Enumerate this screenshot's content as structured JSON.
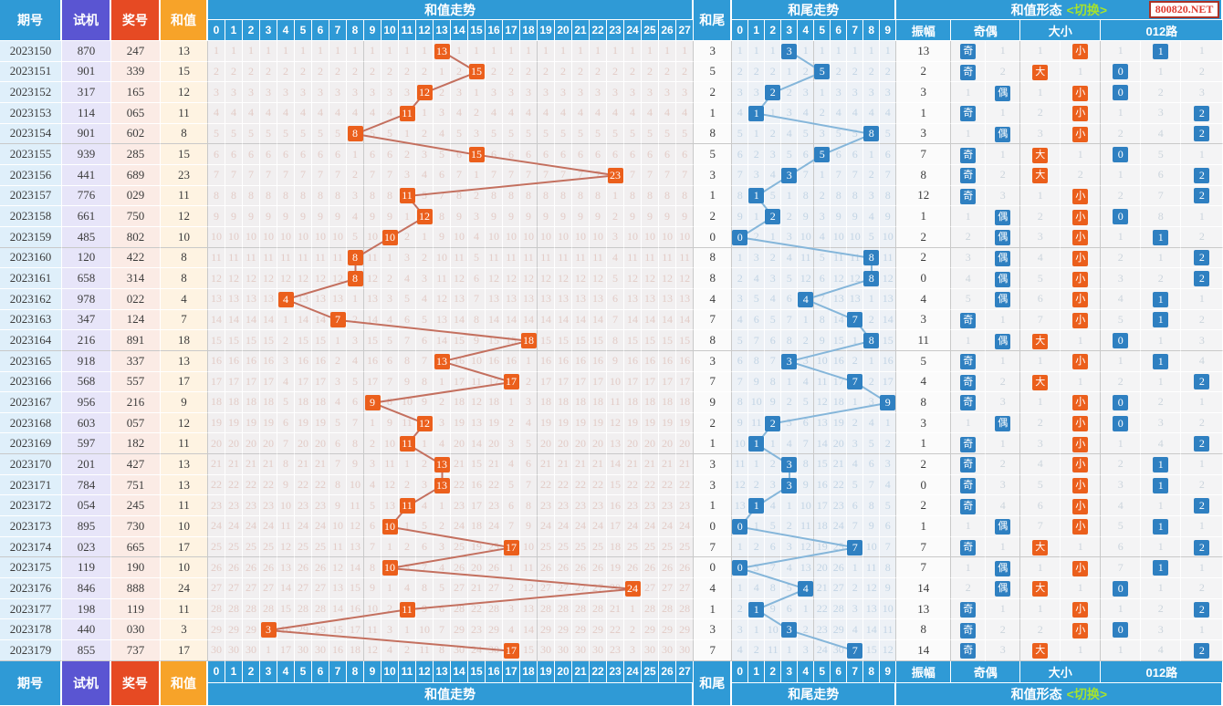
{
  "site": {
    "watermark": "800820.NET"
  },
  "labels": {
    "period": "期号",
    "test": "试机",
    "prize": "奖号",
    "sum": "和值",
    "sum_trend": "和值走势",
    "tail": "和尾",
    "tail_trend": "和尾走势",
    "pattern": "和值形态",
    "switch_label": "<切换>",
    "amplitude": "振幅",
    "parity": "奇偶",
    "size": "大小",
    "road": "012路",
    "odd": "奇",
    "even": "偶",
    "big": "大",
    "small": "小",
    "sum_cols": [
      0,
      1,
      2,
      3,
      4,
      5,
      6,
      7,
      8,
      9,
      10,
      11,
      12,
      13,
      14,
      15,
      16,
      17,
      18,
      19,
      20,
      21,
      22,
      23,
      24,
      25,
      26,
      27
    ],
    "tail_cols": [
      0,
      1,
      2,
      3,
      4,
      5,
      6,
      7,
      8,
      9
    ],
    "road_cols": [
      0,
      1,
      2
    ]
  },
  "colors": {
    "header_blue": "#2F9AD6",
    "header_purple": "#5A55D2",
    "header_red": "#E64A23",
    "header_orange": "#F7A329",
    "sum_point": "#EB5F1C",
    "sum_line": "#C4705F",
    "sum_miss_text": "#E2CBC6",
    "tail_point": "#2F80C1",
    "tail_line": "#85B6DA",
    "tail_miss_text": "#C2D4E4",
    "form_miss_text": "#CBD4DC",
    "switch_green": "#A6E22E",
    "watermark_red": "#E03A2F",
    "grid_major": "#C9C9C9"
  },
  "rows": [
    {
      "period": "2023150",
      "test": "870",
      "prize": "247",
      "sum": 13,
      "tail": 3,
      "amp": 13,
      "parity": "奇",
      "size": "小",
      "road": 1
    },
    {
      "period": "2023151",
      "test": "901",
      "prize": "339",
      "sum": 15,
      "tail": 5,
      "amp": 2,
      "parity": "奇",
      "size": "大",
      "road": 0
    },
    {
      "period": "2023152",
      "test": "317",
      "prize": "165",
      "sum": 12,
      "tail": 2,
      "amp": 3,
      "parity": "偶",
      "size": "小",
      "road": 0
    },
    {
      "period": "2023153",
      "test": "114",
      "prize": "065",
      "sum": 11,
      "tail": 1,
      "amp": 1,
      "parity": "奇",
      "size": "小",
      "road": 2
    },
    {
      "period": "2023154",
      "test": "901",
      "prize": "602",
      "sum": 8,
      "tail": 8,
      "amp": 3,
      "parity": "偶",
      "size": "小",
      "road": 2
    },
    {
      "period": "2023155",
      "test": "939",
      "prize": "285",
      "sum": 15,
      "tail": 5,
      "amp": 7,
      "parity": "奇",
      "size": "大",
      "road": 0
    },
    {
      "period": "2023156",
      "test": "441",
      "prize": "689",
      "sum": 23,
      "tail": 3,
      "amp": 8,
      "parity": "奇",
      "size": "大",
      "road": 2
    },
    {
      "period": "2023157",
      "test": "776",
      "prize": "029",
      "sum": 11,
      "tail": 1,
      "amp": 12,
      "parity": "奇",
      "size": "小",
      "road": 2
    },
    {
      "period": "2023158",
      "test": "661",
      "prize": "750",
      "sum": 12,
      "tail": 2,
      "amp": 1,
      "parity": "偶",
      "size": "小",
      "road": 0
    },
    {
      "period": "2023159",
      "test": "485",
      "prize": "802",
      "sum": 10,
      "tail": 0,
      "amp": 2,
      "parity": "偶",
      "size": "小",
      "road": 1
    },
    {
      "period": "2023160",
      "test": "120",
      "prize": "422",
      "sum": 8,
      "tail": 8,
      "amp": 2,
      "parity": "偶",
      "size": "小",
      "road": 2
    },
    {
      "period": "2023161",
      "test": "658",
      "prize": "314",
      "sum": 8,
      "tail": 8,
      "amp": 0,
      "parity": "偶",
      "size": "小",
      "road": 2
    },
    {
      "period": "2023162",
      "test": "978",
      "prize": "022",
      "sum": 4,
      "tail": 4,
      "amp": 4,
      "parity": "偶",
      "size": "小",
      "road": 1
    },
    {
      "period": "2023163",
      "test": "347",
      "prize": "124",
      "sum": 7,
      "tail": 7,
      "amp": 3,
      "parity": "奇",
      "size": "小",
      "road": 1
    },
    {
      "period": "2023164",
      "test": "216",
      "prize": "891",
      "sum": 18,
      "tail": 8,
      "amp": 11,
      "parity": "偶",
      "size": "大",
      "road": 0
    },
    {
      "period": "2023165",
      "test": "918",
      "prize": "337",
      "sum": 13,
      "tail": 3,
      "amp": 5,
      "parity": "奇",
      "size": "小",
      "road": 1
    },
    {
      "period": "2023166",
      "test": "568",
      "prize": "557",
      "sum": 17,
      "tail": 7,
      "amp": 4,
      "parity": "奇",
      "size": "大",
      "road": 2
    },
    {
      "period": "2023167",
      "test": "956",
      "prize": "216",
      "sum": 9,
      "tail": 9,
      "amp": 8,
      "parity": "奇",
      "size": "小",
      "road": 0
    },
    {
      "period": "2023168",
      "test": "603",
      "prize": "057",
      "sum": 12,
      "tail": 2,
      "amp": 3,
      "parity": "偶",
      "size": "小",
      "road": 0
    },
    {
      "period": "2023169",
      "test": "597",
      "prize": "182",
      "sum": 11,
      "tail": 1,
      "amp": 1,
      "parity": "奇",
      "size": "小",
      "road": 2
    },
    {
      "period": "2023170",
      "test": "201",
      "prize": "427",
      "sum": 13,
      "tail": 3,
      "amp": 2,
      "parity": "奇",
      "size": "小",
      "road": 1
    },
    {
      "period": "2023171",
      "test": "784",
      "prize": "751",
      "sum": 13,
      "tail": 3,
      "amp": 0,
      "parity": "奇",
      "size": "小",
      "road": 1
    },
    {
      "period": "2023172",
      "test": "054",
      "prize": "245",
      "sum": 11,
      "tail": 1,
      "amp": 2,
      "parity": "奇",
      "size": "小",
      "road": 2
    },
    {
      "period": "2023173",
      "test": "895",
      "prize": "730",
      "sum": 10,
      "tail": 0,
      "amp": 1,
      "parity": "偶",
      "size": "小",
      "road": 1
    },
    {
      "period": "2023174",
      "test": "023",
      "prize": "665",
      "sum": 17,
      "tail": 7,
      "amp": 7,
      "parity": "奇",
      "size": "大",
      "road": 2
    },
    {
      "period": "2023175",
      "test": "119",
      "prize": "190",
      "sum": 10,
      "tail": 0,
      "amp": 7,
      "parity": "偶",
      "size": "小",
      "road": 1
    },
    {
      "period": "2023176",
      "test": "846",
      "prize": "888",
      "sum": 24,
      "tail": 4,
      "amp": 14,
      "parity": "偶",
      "size": "大",
      "road": 0
    },
    {
      "period": "2023177",
      "test": "198",
      "prize": "119",
      "sum": 11,
      "tail": 1,
      "amp": 13,
      "parity": "奇",
      "size": "小",
      "road": 2
    },
    {
      "period": "2023178",
      "test": "440",
      "prize": "030",
      "sum": 3,
      "tail": 3,
      "amp": 8,
      "parity": "奇",
      "size": "小",
      "road": 0
    },
    {
      "period": "2023179",
      "test": "855",
      "prize": "737",
      "sum": 17,
      "tail": 7,
      "amp": 14,
      "parity": "奇",
      "size": "大",
      "road": 2
    }
  ],
  "chart_data": [
    {
      "type": "line",
      "title": "和值走势",
      "x": [
        "2023150",
        "2023151",
        "2023152",
        "2023153",
        "2023154",
        "2023155",
        "2023156",
        "2023157",
        "2023158",
        "2023159",
        "2023160",
        "2023161",
        "2023162",
        "2023163",
        "2023164",
        "2023165",
        "2023166",
        "2023167",
        "2023168",
        "2023169",
        "2023170",
        "2023171",
        "2023172",
        "2023173",
        "2023174",
        "2023175",
        "2023176",
        "2023177",
        "2023178",
        "2023179"
      ],
      "series": [
        {
          "name": "和值",
          "values": [
            13,
            15,
            12,
            11,
            8,
            15,
            23,
            11,
            12,
            10,
            8,
            8,
            4,
            7,
            18,
            13,
            17,
            9,
            12,
            11,
            13,
            13,
            11,
            10,
            17,
            10,
            24,
            11,
            3,
            17
          ]
        },
        {
          "name": "振幅",
          "values": [
            13,
            2,
            3,
            1,
            3,
            7,
            8,
            12,
            1,
            2,
            2,
            0,
            4,
            3,
            11,
            5,
            4,
            8,
            3,
            1,
            2,
            0,
            2,
            1,
            7,
            7,
            14,
            13,
            8,
            14
          ]
        }
      ],
      "xlabel": "期号",
      "ylabel": "和值",
      "ylim": [
        0,
        27
      ],
      "grid": true,
      "legend_position": "none"
    },
    {
      "type": "line",
      "title": "和尾走势",
      "x": [
        "2023150",
        "2023151",
        "2023152",
        "2023153",
        "2023154",
        "2023155",
        "2023156",
        "2023157",
        "2023158",
        "2023159",
        "2023160",
        "2023161",
        "2023162",
        "2023163",
        "2023164",
        "2023165",
        "2023166",
        "2023167",
        "2023168",
        "2023169",
        "2023170",
        "2023171",
        "2023172",
        "2023173",
        "2023174",
        "2023175",
        "2023176",
        "2023177",
        "2023178",
        "2023179"
      ],
      "series": [
        {
          "name": "和尾",
          "values": [
            3,
            5,
            2,
            1,
            8,
            5,
            3,
            1,
            2,
            0,
            8,
            8,
            4,
            7,
            8,
            3,
            7,
            9,
            2,
            1,
            3,
            3,
            1,
            0,
            7,
            0,
            4,
            1,
            3,
            7
          ]
        }
      ],
      "xlabel": "期号",
      "ylabel": "和尾",
      "ylim": [
        0,
        9
      ],
      "grid": true,
      "legend_position": "none"
    }
  ]
}
